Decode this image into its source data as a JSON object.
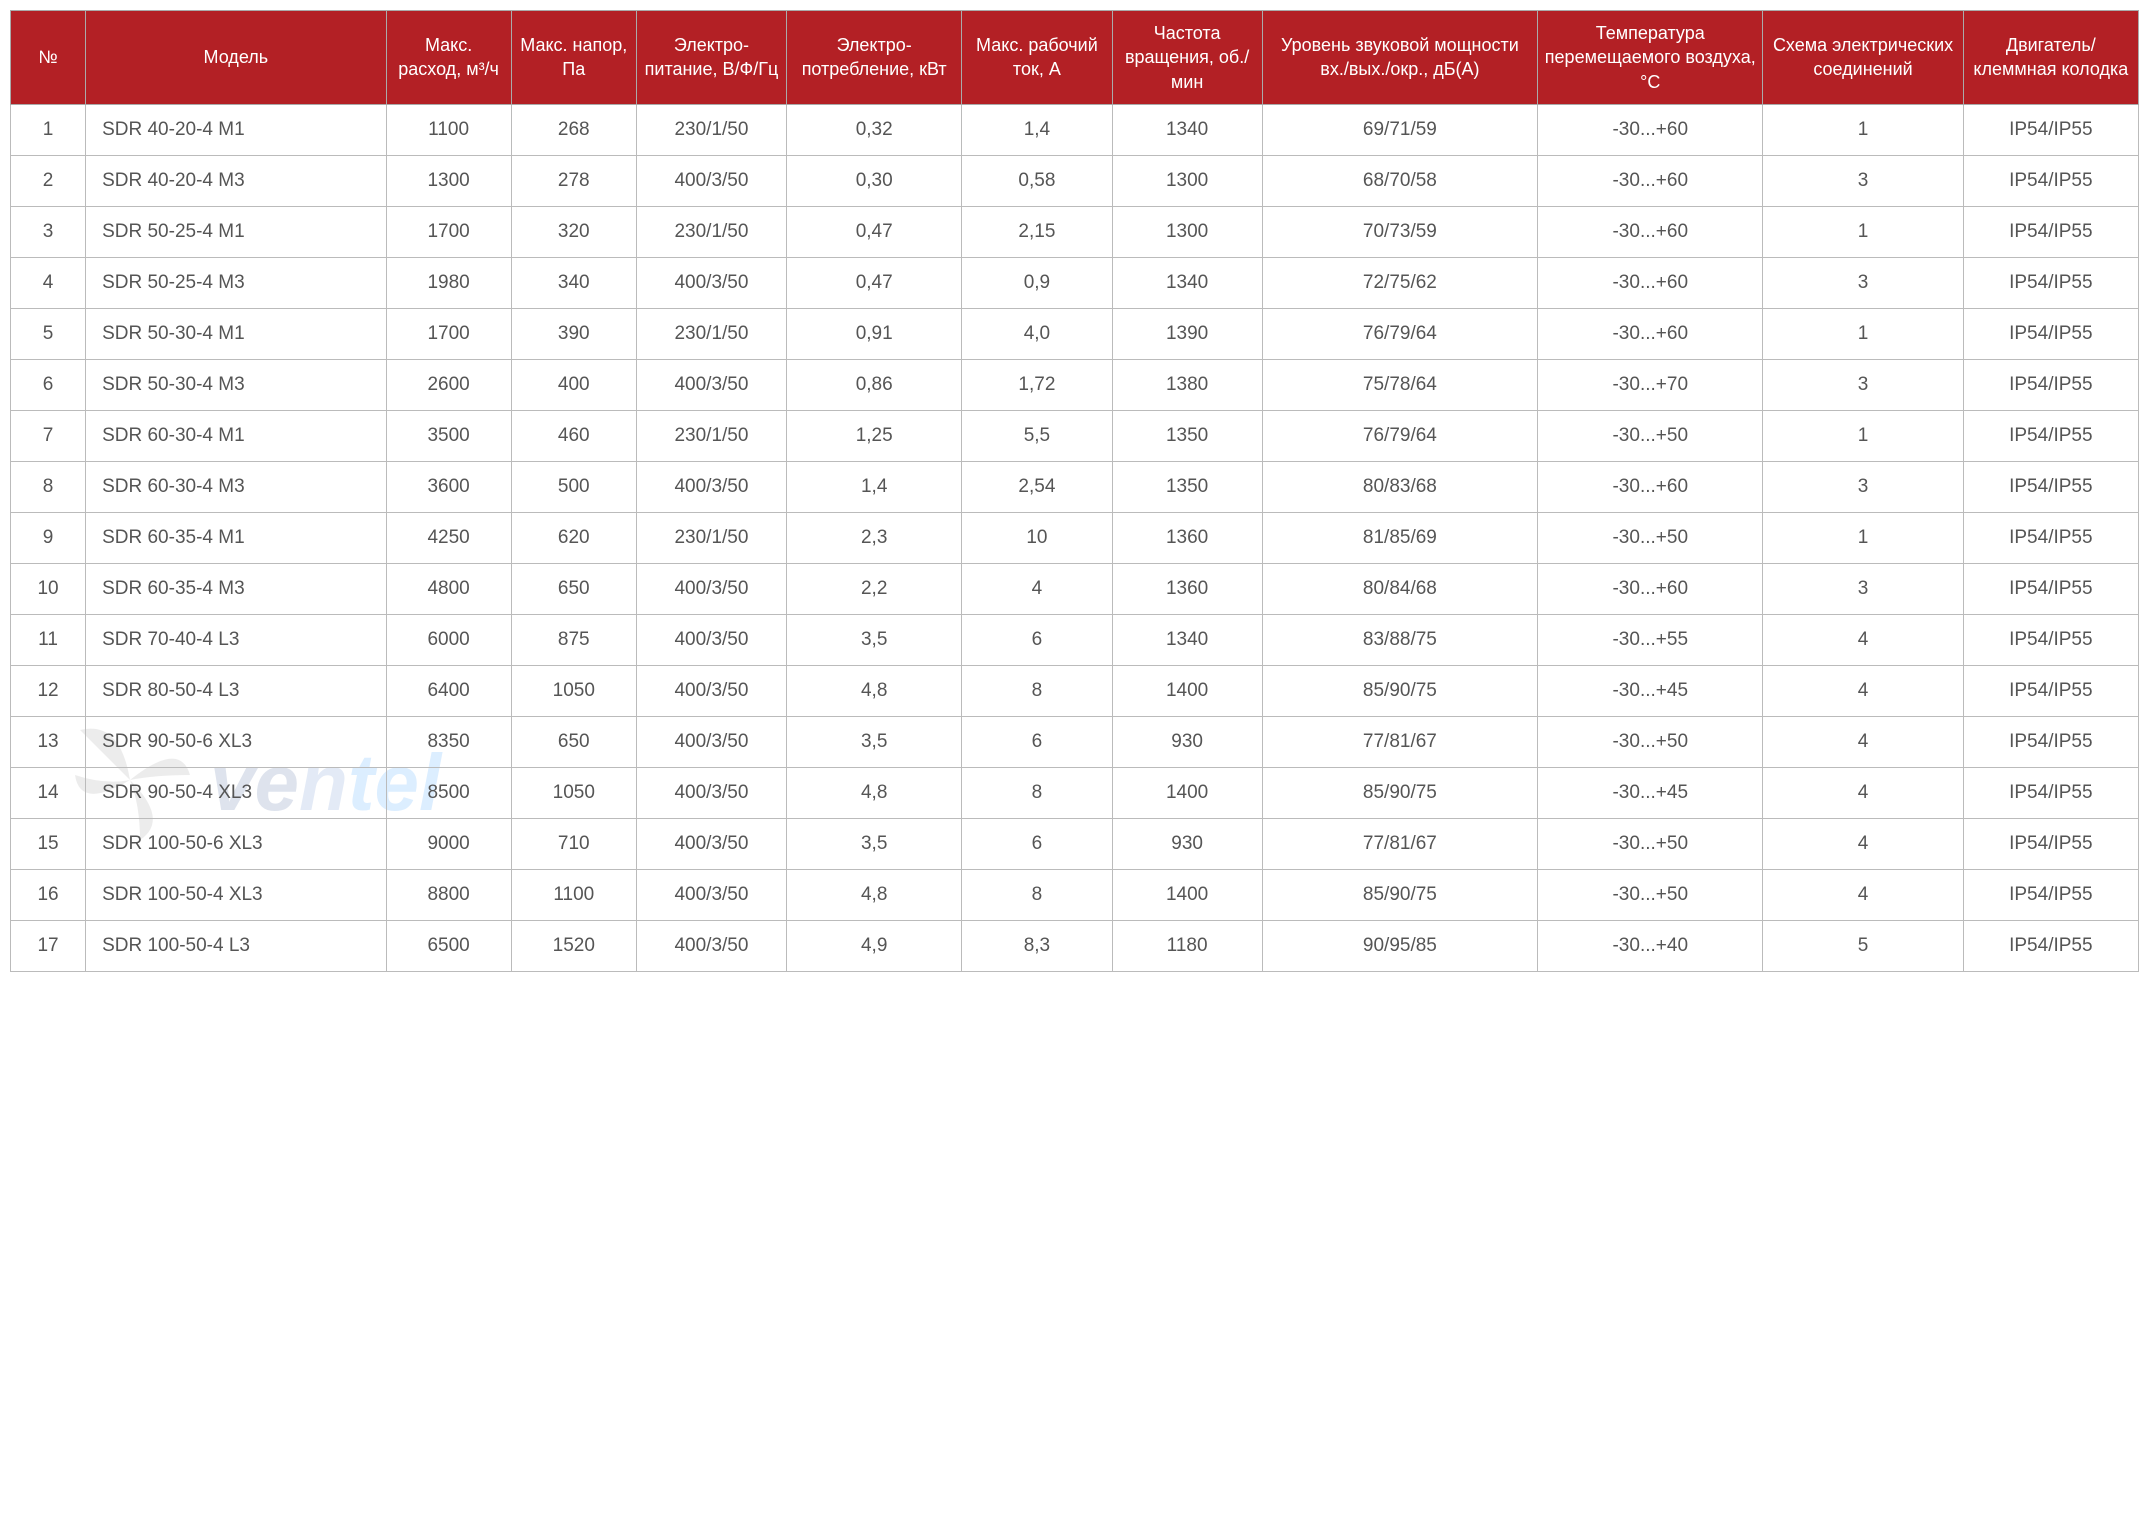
{
  "table": {
    "header_bg": "#b32025",
    "header_fg": "#ffffff",
    "border_color": "#bbbbbb",
    "cell_fg": "#555555",
    "header_fontsize": 18,
    "cell_fontsize": 19,
    "columns": [
      {
        "key": "num",
        "label": "№",
        "width": "3%"
      },
      {
        "key": "model",
        "label": "Модель",
        "width": "12%"
      },
      {
        "key": "flow",
        "label": "Макс. расход, м³/ч",
        "width": "5%"
      },
      {
        "key": "press",
        "label": "Макс. напор, Па",
        "width": "5%"
      },
      {
        "key": "power",
        "label": "Электро-питание, В/Ф/Гц",
        "width": "6%"
      },
      {
        "key": "cons",
        "label": "Электро-потребление, кВт",
        "width": "7%"
      },
      {
        "key": "amp",
        "label": "Макс. рабочий ток, А",
        "width": "6%"
      },
      {
        "key": "rpm",
        "label": "Частота вращения, об./мин",
        "width": "6%"
      },
      {
        "key": "noise",
        "label": "Уровень звуковой мощности вх./вых./окр., дБ(А)",
        "width": "11%"
      },
      {
        "key": "temp",
        "label": "Температура перемещаемого воздуха, °C",
        "width": "9%"
      },
      {
        "key": "scheme",
        "label": "Схема электрических соединений",
        "width": "8%"
      },
      {
        "key": "ip",
        "label": "Двигатель/ клеммная колодка",
        "width": "7%"
      }
    ],
    "rows": [
      {
        "num": "1",
        "model": "SDR 40-20-4 M1",
        "flow": "1100",
        "press": "268",
        "power": "230/1/50",
        "cons": "0,32",
        "amp": "1,4",
        "rpm": "1340",
        "noise": "69/71/59",
        "temp": "-30...+60",
        "scheme": "1",
        "ip": "IP54/IP55"
      },
      {
        "num": "2",
        "model": "SDR 40-20-4 M3",
        "flow": "1300",
        "press": "278",
        "power": "400/3/50",
        "cons": "0,30",
        "amp": "0,58",
        "rpm": "1300",
        "noise": "68/70/58",
        "temp": "-30...+60",
        "scheme": "3",
        "ip": "IP54/IP55"
      },
      {
        "num": "3",
        "model": "SDR 50-25-4 M1",
        "flow": "1700",
        "press": "320",
        "power": "230/1/50",
        "cons": "0,47",
        "amp": "2,15",
        "rpm": "1300",
        "noise": "70/73/59",
        "temp": "-30...+60",
        "scheme": "1",
        "ip": "IP54/IP55"
      },
      {
        "num": "4",
        "model": "SDR 50-25-4 M3",
        "flow": "1980",
        "press": "340",
        "power": "400/3/50",
        "cons": "0,47",
        "amp": "0,9",
        "rpm": "1340",
        "noise": "72/75/62",
        "temp": "-30...+60",
        "scheme": "3",
        "ip": "IP54/IP55"
      },
      {
        "num": "5",
        "model": "SDR 50-30-4 M1",
        "flow": "1700",
        "press": "390",
        "power": "230/1/50",
        "cons": "0,91",
        "amp": "4,0",
        "rpm": "1390",
        "noise": "76/79/64",
        "temp": "-30...+60",
        "scheme": "1",
        "ip": "IP54/IP55"
      },
      {
        "num": "6",
        "model": "SDR 50-30-4 M3",
        "flow": "2600",
        "press": "400",
        "power": "400/3/50",
        "cons": "0,86",
        "amp": "1,72",
        "rpm": "1380",
        "noise": "75/78/64",
        "temp": "-30...+70",
        "scheme": "3",
        "ip": "IP54/IP55"
      },
      {
        "num": "7",
        "model": "SDR 60-30-4 M1",
        "flow": "3500",
        "press": "460",
        "power": "230/1/50",
        "cons": "1,25",
        "amp": "5,5",
        "rpm": "1350",
        "noise": "76/79/64",
        "temp": "-30...+50",
        "scheme": "1",
        "ip": "IP54/IP55"
      },
      {
        "num": "8",
        "model": "SDR 60-30-4 M3",
        "flow": "3600",
        "press": "500",
        "power": "400/3/50",
        "cons": "1,4",
        "amp": "2,54",
        "rpm": "1350",
        "noise": "80/83/68",
        "temp": "-30...+60",
        "scheme": "3",
        "ip": "IP54/IP55"
      },
      {
        "num": "9",
        "model": "SDR 60-35-4 M1",
        "flow": "4250",
        "press": "620",
        "power": "230/1/50",
        "cons": "2,3",
        "amp": "10",
        "rpm": "1360",
        "noise": "81/85/69",
        "temp": "-30...+50",
        "scheme": "1",
        "ip": "IP54/IP55"
      },
      {
        "num": "10",
        "model": "SDR 60-35-4 M3",
        "flow": "4800",
        "press": "650",
        "power": "400/3/50",
        "cons": "2,2",
        "amp": "4",
        "rpm": "1360",
        "noise": "80/84/68",
        "temp": "-30...+60",
        "scheme": "3",
        "ip": "IP54/IP55"
      },
      {
        "num": "11",
        "model": "SDR 70-40-4 L3",
        "flow": "6000",
        "press": "875",
        "power": "400/3/50",
        "cons": "3,5",
        "amp": "6",
        "rpm": "1340",
        "noise": "83/88/75",
        "temp": "-30...+55",
        "scheme": "4",
        "ip": "IP54/IP55"
      },
      {
        "num": "12",
        "model": "SDR 80-50-4 L3",
        "flow": "6400",
        "press": "1050",
        "power": "400/3/50",
        "cons": "4,8",
        "amp": "8",
        "rpm": "1400",
        "noise": "85/90/75",
        "temp": "-30...+45",
        "scheme": "4",
        "ip": "IP54/IP55"
      },
      {
        "num": "13",
        "model": "SDR 90-50-6 XL3",
        "flow": "8350",
        "press": "650",
        "power": "400/3/50",
        "cons": "3,5",
        "amp": "6",
        "rpm": "930",
        "noise": "77/81/67",
        "temp": "-30...+50",
        "scheme": "4",
        "ip": "IP54/IP55"
      },
      {
        "num": "14",
        "model": "SDR 90-50-4 XL3",
        "flow": "8500",
        "press": "1050",
        "power": "400/3/50",
        "cons": "4,8",
        "amp": "8",
        "rpm": "1400",
        "noise": "85/90/75",
        "temp": "-30...+45",
        "scheme": "4",
        "ip": "IP54/IP55"
      },
      {
        "num": "15",
        "model": "SDR 100-50-6 XL3",
        "flow": "9000",
        "press": "710",
        "power": "400/3/50",
        "cons": "3,5",
        "amp": "6",
        "rpm": "930",
        "noise": "77/81/67",
        "temp": "-30...+50",
        "scheme": "4",
        "ip": "IP54/IP55"
      },
      {
        "num": "16",
        "model": "SDR 100-50-4 XL3",
        "flow": "8800",
        "press": "1100",
        "power": "400/3/50",
        "cons": "4,8",
        "amp": "8",
        "rpm": "1400",
        "noise": "85/90/75",
        "temp": "-30...+50",
        "scheme": "4",
        "ip": "IP54/IP55"
      },
      {
        "num": "17",
        "model": "SDR 100-50-4 L3",
        "flow": "6500",
        "press": "1520",
        "power": "400/3/50",
        "cons": "4,9",
        "amp": "8,3",
        "rpm": "1180",
        "noise": "90/95/85",
        "temp": "-30...+40",
        "scheme": "5",
        "ip": "IP54/IP55"
      }
    ]
  },
  "watermark": {
    "text": "ventel",
    "fan_color": "#888888",
    "text_color_start": "#2a4b8d",
    "text_color_end": "#1e90ff"
  }
}
